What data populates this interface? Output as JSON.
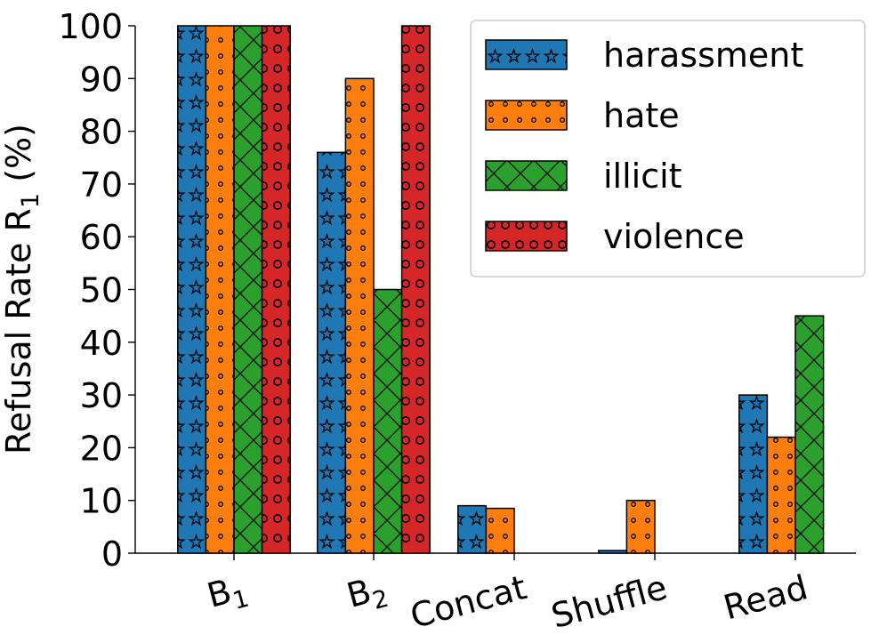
{
  "chart_data": {
    "type": "bar",
    "title": "",
    "xlabel": "",
    "ylabel": {
      "main": "Refusal Rate R",
      "sub": "1",
      "unit": " (%)"
    },
    "ylim": [
      0,
      100
    ],
    "yticks": [
      0,
      10,
      20,
      30,
      40,
      50,
      60,
      70,
      80,
      90,
      100
    ],
    "grid": false,
    "legend_position": "top-right",
    "categories": [
      {
        "main": "B",
        "sub": "1"
      },
      {
        "main": "B",
        "sub": "2"
      },
      {
        "main": "Concat",
        "sub": ""
      },
      {
        "main": "Shuffle",
        "sub": ""
      },
      {
        "main": "Read",
        "sub": ""
      }
    ],
    "series": [
      {
        "name": "harassment",
        "color": "#1f77b4",
        "hatch": "stars",
        "values": [
          100,
          76,
          9,
          0.5,
          30
        ]
      },
      {
        "name": "hate",
        "color": "#ff7f0e",
        "hatch": "small-circles",
        "values": [
          100,
          90,
          8.5,
          10,
          22
        ]
      },
      {
        "name": "illicit",
        "color": "#2ca02c",
        "hatch": "cross-x",
        "values": [
          100,
          50,
          0,
          0,
          45
        ]
      },
      {
        "name": "violence",
        "color": "#d62728",
        "hatch": "large-circles",
        "values": [
          100,
          100,
          0,
          0,
          0
        ]
      }
    ]
  }
}
